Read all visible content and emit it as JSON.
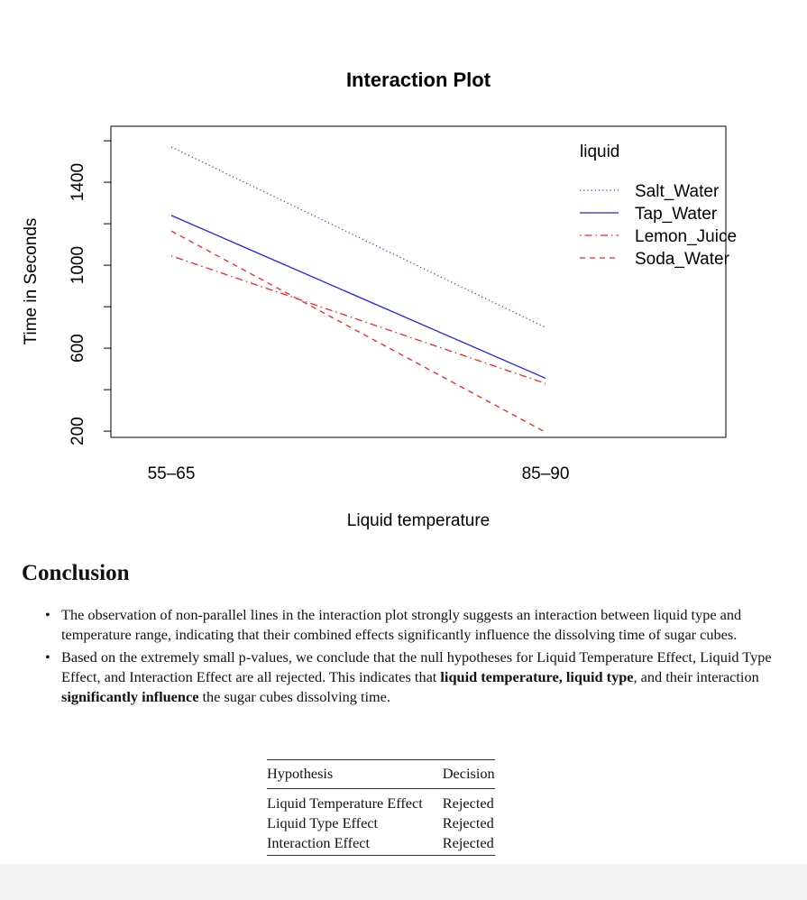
{
  "chart_data": {
    "type": "line",
    "title": "Interaction Plot",
    "xlabel": "Liquid temperature",
    "ylabel": "Time in Seconds",
    "categories": [
      "55–65",
      "85–90"
    ],
    "yticks": [
      "200",
      "600",
      "1000",
      "1400"
    ],
    "ylim": [
      170,
      1670
    ],
    "legend_title": "liquid",
    "legend_position": "top-right",
    "series": [
      {
        "name": "Salt_Water",
        "values": [
          1570,
          700
        ],
        "color": "#3b3bff",
        "style": "dotted"
      },
      {
        "name": "Tap_Water",
        "values": [
          1240,
          455
        ],
        "color": "#2020ff",
        "style": "solid"
      },
      {
        "name": "Lemon_Juice",
        "values": [
          1045,
          430
        ],
        "color": "#ff2020",
        "style": "dotdash"
      },
      {
        "name": "Soda_Water",
        "values": [
          1165,
          195
        ],
        "color": "#ff2020",
        "style": "dashed"
      }
    ]
  },
  "conclusion": {
    "heading": "Conclusion",
    "bullet1": "The observation of non-parallel lines in the interaction plot strongly suggests an interaction between liquid type and temperature range, indicating that their combined effects significantly influence the dissolving time of sugar cubes.",
    "bullet2": {
      "part1": "Based on the extremely small p-values, we conclude that the null hypotheses for Liquid Temperature Effect, Liquid Type Effect, and Interaction Effect are all rejected. This indicates that ",
      "bold1": "liquid temperature, liquid type",
      "part2": ", and their interaction ",
      "bold2": "significantly influence",
      "part3": " the sugar cubes dissolving time."
    }
  },
  "table": {
    "headers": [
      "Hypothesis",
      "Decision"
    ],
    "rows": [
      [
        "Liquid Temperature Effect",
        "Rejected"
      ],
      [
        "Liquid Type Effect",
        "Rejected"
      ],
      [
        "Interaction Effect",
        "Rejected"
      ]
    ]
  }
}
